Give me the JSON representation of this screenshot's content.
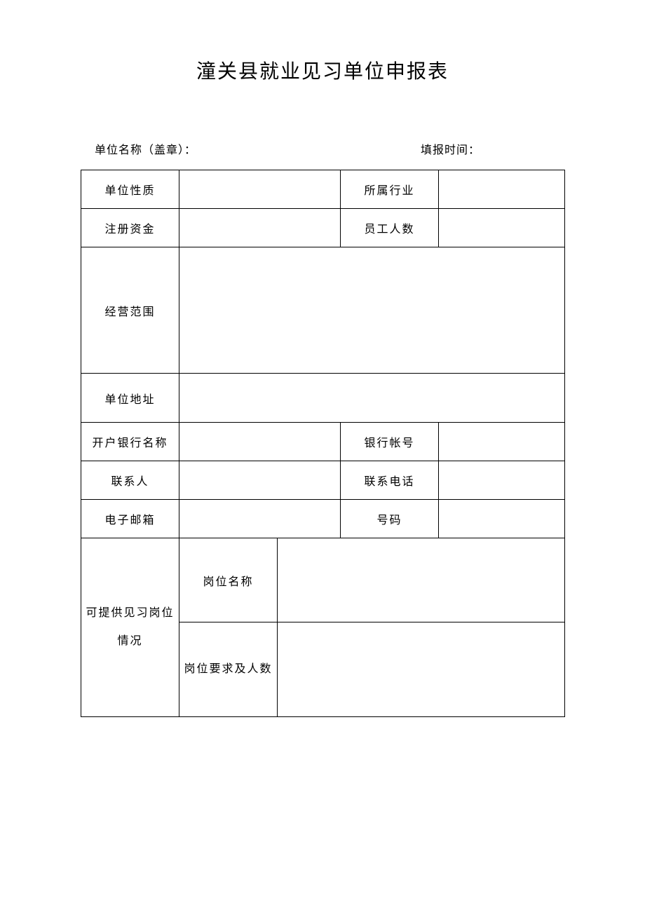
{
  "document": {
    "title": "潼关县就业见习单位申报表",
    "header": {
      "unit_name_label": "单位名称（盖章）：",
      "fill_time_label": "填报时间："
    },
    "table": {
      "row1": {
        "label1": "单位性质",
        "value1": "",
        "label2": "所属行业",
        "value2": ""
      },
      "row2": {
        "label1": "注册资金",
        "value1": "",
        "label2": "员工人数",
        "value2": ""
      },
      "row3": {
        "label": "经营范围",
        "value": ""
      },
      "row4": {
        "label": "单位地址",
        "value": ""
      },
      "row5": {
        "label1": "开户银行名称",
        "value1": "",
        "label2": "银行帐号",
        "value2": ""
      },
      "row6": {
        "label1": "联系人",
        "value1": "",
        "label2": "联系电话",
        "value2": ""
      },
      "row7": {
        "label1": "电子邮箱",
        "value1": "",
        "label2": "号码",
        "value2": ""
      },
      "row8": {
        "main_label": "可提供见习岗位情况",
        "sub1_label": "岗位名称",
        "sub1_value": "",
        "sub2_label": "岗位要求及人数",
        "sub2_value": ""
      }
    },
    "styling": {
      "background_color": "#ffffff",
      "border_color": "#000000",
      "text_color": "#000000",
      "title_fontsize": 28,
      "body_fontsize": 16,
      "font_family": "SimSun"
    }
  }
}
